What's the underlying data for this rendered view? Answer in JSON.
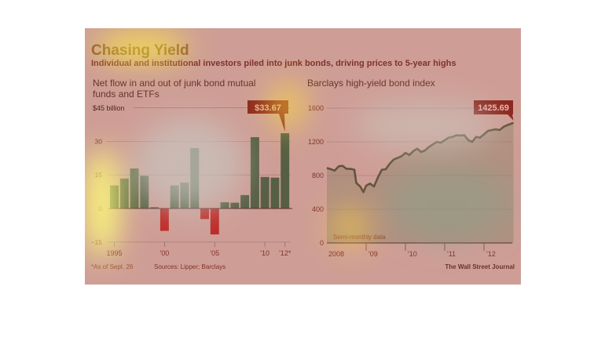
{
  "title": "Chasing Yield",
  "subtitle": "Individual and institutional investors piled into junk bonds, driving prices to 5-year highs",
  "footnote": "*As of Sept. 26",
  "sources": "Sources: Lipper; Barclays",
  "credit": "The Wall Street Journal",
  "colors": {
    "positive": "#1e6b48",
    "negative": "#b02020",
    "line": "#2e5a3a",
    "callout": "#6a1a10",
    "background": "#c9c5bd"
  },
  "chart_data": [
    {
      "type": "bar",
      "title": "Net flow in and out of junk bond mutual funds and ETFs",
      "title_lines": [
        "Net flow in and out of junk bond mutual",
        "funds and ETFs"
      ],
      "ylabel": "$45 billion",
      "ylim": [
        -15,
        45
      ],
      "yticks": [
        -15,
        0,
        15,
        30
      ],
      "ytick_labels": [
        "−15",
        "0",
        "15",
        "30"
      ],
      "grid": true,
      "categories": [
        "1995",
        "1996",
        "1997",
        "1998",
        "1999",
        "2000",
        "2001",
        "2002",
        "2003",
        "2004",
        "2005",
        "2006",
        "2007",
        "2008",
        "2009",
        "2010",
        "2011",
        "2012*"
      ],
      "xtick_labels": [
        {
          "cat": "1995",
          "label": "1995"
        },
        {
          "cat": "2000",
          "label": "'00"
        },
        {
          "cat": "2005",
          "label": "'05"
        },
        {
          "cat": "2010",
          "label": "'10"
        },
        {
          "cat": "2012*",
          "label": "'12*"
        }
      ],
      "values": [
        10.3,
        13.4,
        17.9,
        14.6,
        0.6,
        -10.0,
        10.3,
        11.6,
        27.0,
        -4.7,
        -11.6,
        2.8,
        2.6,
        6.0,
        31.9,
        14.1,
        13.8,
        33.67
      ],
      "callout": "$33.67"
    },
    {
      "type": "line",
      "title": "Barclays high-yield bond index",
      "ylim": [
        0,
        1600
      ],
      "yticks": [
        0,
        400,
        800,
        1200,
        1600
      ],
      "ytick_labels": [
        "0",
        "400",
        "800",
        "1200",
        "1600"
      ],
      "xlim": [
        2008,
        2012.75
      ],
      "xticks": [
        2008,
        2009,
        2010,
        2011,
        2012
      ],
      "xtick_labels": [
        "2008",
        "'09",
        "'10",
        "'11",
        "'12"
      ],
      "grid": true,
      "annotation": "Semi-monthly data",
      "callout": "1425.69",
      "x": [
        2008.0,
        2008.1,
        2008.2,
        2008.3,
        2008.4,
        2008.5,
        2008.6,
        2008.7,
        2008.75,
        2008.85,
        2008.93,
        2009.0,
        2009.1,
        2009.2,
        2009.3,
        2009.4,
        2009.5,
        2009.6,
        2009.7,
        2009.8,
        2009.9,
        2010.0,
        2010.1,
        2010.2,
        2010.3,
        2010.4,
        2010.5,
        2010.6,
        2010.7,
        2010.8,
        2010.9,
        2011.0,
        2011.1,
        2011.2,
        2011.3,
        2011.4,
        2011.5,
        2011.6,
        2011.7,
        2011.8,
        2011.9,
        2012.0,
        2012.1,
        2012.2,
        2012.3,
        2012.4,
        2012.5,
        2012.6,
        2012.75
      ],
      "y": [
        890,
        875,
        860,
        910,
        915,
        880,
        880,
        870,
        713,
        670,
        604,
        680,
        705,
        670,
        780,
        870,
        875,
        940,
        990,
        1010,
        1030,
        1070,
        1045,
        1090,
        1120,
        1080,
        1100,
        1140,
        1170,
        1200,
        1190,
        1220,
        1250,
        1260,
        1280,
        1275,
        1280,
        1220,
        1200,
        1260,
        1250,
        1290,
        1330,
        1340,
        1350,
        1340,
        1380,
        1400,
        1425.69
      ]
    }
  ]
}
